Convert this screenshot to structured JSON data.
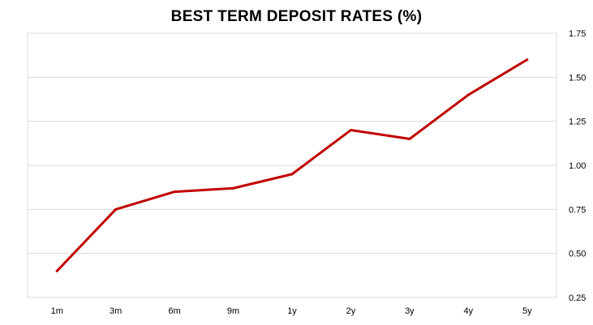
{
  "chart_data": {
    "type": "line",
    "title": "BEST TERM DEPOSIT RATES (%)",
    "xlabel": "",
    "ylabel": "",
    "categories": [
      "1m",
      "3m",
      "6m",
      "9m",
      "1y",
      "2y",
      "3y",
      "4y",
      "5y"
    ],
    "series": [
      {
        "values": [
          0.4,
          0.75,
          0.85,
          0.87,
          0.95,
          1.2,
          1.15,
          1.4,
          1.6
        ]
      }
    ],
    "ylim": [
      0.25,
      1.75
    ],
    "yticks": [
      "0.25",
      "0.50",
      "0.75",
      "1.00",
      "1.25",
      "1.50",
      "1.75"
    ],
    "grid": true,
    "y_axis_side": "right",
    "legend": "none",
    "line_color": "#c00000",
    "grid_color": "#d9d9d9"
  }
}
